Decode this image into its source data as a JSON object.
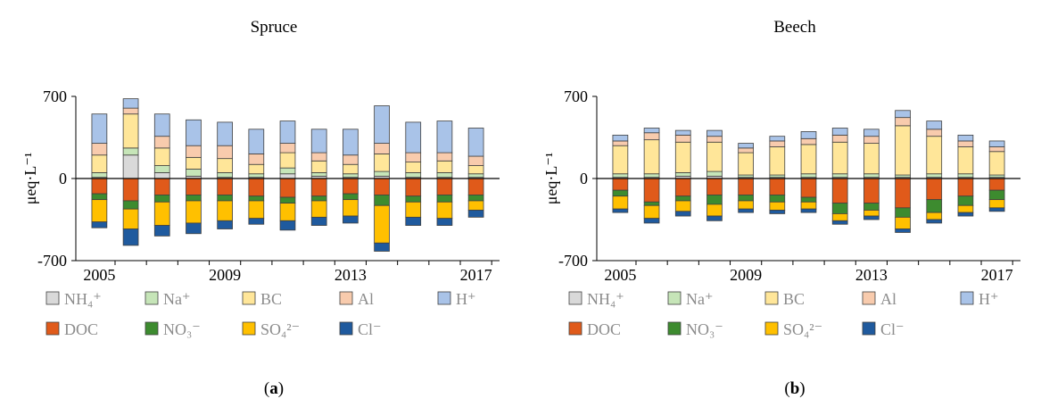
{
  "chart_data": [
    {
      "type": "bar",
      "stacked": true,
      "title": "Spruce",
      "caption_letter": "a",
      "ylabel": "μeq·L⁻¹",
      "ylim": [
        -700,
        700
      ],
      "yticks": [
        700,
        0,
        -700
      ],
      "x": [
        2005,
        2006,
        2007,
        2008,
        2009,
        2010,
        2011,
        2012,
        2013,
        2014,
        2015,
        2016,
        2017
      ],
      "xticks": [
        2005,
        2009,
        2013,
        2017
      ],
      "positive_series": [
        {
          "name": "NH4+",
          "values": [
            10,
            200,
            50,
            20,
            10,
            10,
            40,
            20,
            10,
            20,
            10,
            10,
            10
          ]
        },
        {
          "name": "Na+",
          "values": [
            40,
            60,
            60,
            60,
            40,
            30,
            50,
            30,
            30,
            40,
            40,
            40,
            30
          ]
        },
        {
          "name": "BC",
          "values": [
            150,
            290,
            150,
            100,
            120,
            80,
            130,
            100,
            80,
            150,
            90,
            100,
            70
          ]
        },
        {
          "name": "Al",
          "values": [
            100,
            50,
            100,
            100,
            110,
            90,
            80,
            70,
            80,
            90,
            80,
            70,
            80
          ]
        },
        {
          "name": "H+",
          "values": [
            250,
            80,
            190,
            220,
            200,
            210,
            190,
            200,
            220,
            320,
            260,
            270,
            240
          ]
        }
      ],
      "negative_series": [
        {
          "name": "DOC",
          "values": [
            -130,
            -190,
            -140,
            -140,
            -140,
            -150,
            -160,
            -150,
            -130,
            -140,
            -150,
            -140,
            -140
          ]
        },
        {
          "name": "NO3-",
          "values": [
            -50,
            -70,
            -60,
            -50,
            -50,
            -40,
            -50,
            -40,
            -50,
            -90,
            -50,
            -60,
            -50
          ]
        },
        {
          "name": "SO4 2-",
          "values": [
            -190,
            -170,
            -200,
            -190,
            -170,
            -150,
            -150,
            -140,
            -140,
            -320,
            -130,
            -140,
            -80
          ]
        },
        {
          "name": "Cl-",
          "values": [
            -50,
            -140,
            -90,
            -90,
            -70,
            -50,
            -80,
            -70,
            -60,
            -70,
            -70,
            -60,
            -60
          ]
        }
      ],
      "legend": {
        "placement": "bottom",
        "entries": [
          "NH₄⁺",
          "Na⁺",
          "BC",
          "Al",
          "H⁺",
          "DOC",
          "NO₃⁻",
          "SO₄²⁻",
          "Cl⁻"
        ]
      }
    },
    {
      "type": "bar",
      "stacked": true,
      "title": "Beech",
      "caption_letter": "b",
      "ylabel": "μeq·L⁻¹",
      "ylim": [
        -700,
        700
      ],
      "yticks": [
        700,
        0,
        -700
      ],
      "x": [
        2005,
        2006,
        2007,
        2008,
        2009,
        2010,
        2011,
        2012,
        2013,
        2014,
        2015,
        2016,
        2017
      ],
      "xticks": [
        2005,
        2009,
        2013,
        2017
      ],
      "positive_series": [
        {
          "name": "NH4+",
          "values": [
            10,
            10,
            20,
            20,
            10,
            10,
            10,
            10,
            10,
            10,
            10,
            10,
            10
          ]
        },
        {
          "name": "Na+",
          "values": [
            30,
            30,
            30,
            40,
            20,
            20,
            30,
            30,
            30,
            20,
            30,
            30,
            20
          ]
        },
        {
          "name": "BC",
          "values": [
            240,
            290,
            260,
            250,
            190,
            240,
            250,
            270,
            260,
            420,
            320,
            230,
            200
          ]
        },
        {
          "name": "Al",
          "values": [
            40,
            60,
            60,
            50,
            40,
            50,
            50,
            60,
            60,
            70,
            60,
            50,
            40
          ]
        },
        {
          "name": "H+",
          "values": [
            50,
            40,
            40,
            50,
            40,
            40,
            60,
            60,
            60,
            60,
            70,
            50,
            50
          ]
        }
      ],
      "negative_series": [
        {
          "name": "DOC",
          "values": [
            -100,
            -200,
            -150,
            -140,
            -140,
            -140,
            -160,
            -210,
            -210,
            -250,
            -180,
            -150,
            -100
          ]
        },
        {
          "name": "NO3-",
          "values": [
            -50,
            -30,
            -40,
            -80,
            -50,
            -60,
            -40,
            -90,
            -60,
            -80,
            -110,
            -80,
            -80
          ]
        },
        {
          "name": "SO4 2-",
          "values": [
            -110,
            -110,
            -90,
            -100,
            -70,
            -70,
            -60,
            -60,
            -50,
            -100,
            -60,
            -60,
            -70
          ]
        },
        {
          "name": "Cl-",
          "values": [
            -30,
            -40,
            -40,
            -40,
            -30,
            -30,
            -30,
            -30,
            -30,
            -30,
            -30,
            -30,
            -30
          ]
        }
      ],
      "legend": {
        "placement": "bottom",
        "entries": [
          "NH₄⁺",
          "Na⁺",
          "BC",
          "Al",
          "H⁺",
          "DOC",
          "NO₃⁻",
          "SO₄²⁻",
          "Cl⁻"
        ]
      }
    }
  ],
  "colors": {
    "NH4+": "#d9d9d9",
    "Na+": "#c6e5b8",
    "BC": "#ffe699",
    "Al": "#f8cbad",
    "H+": "#a9c3e8",
    "DOC": "#e05a1a",
    "NO3-": "#3d8b2f",
    "SO4 2-": "#ffc000",
    "Cl-": "#1f5a9e"
  }
}
